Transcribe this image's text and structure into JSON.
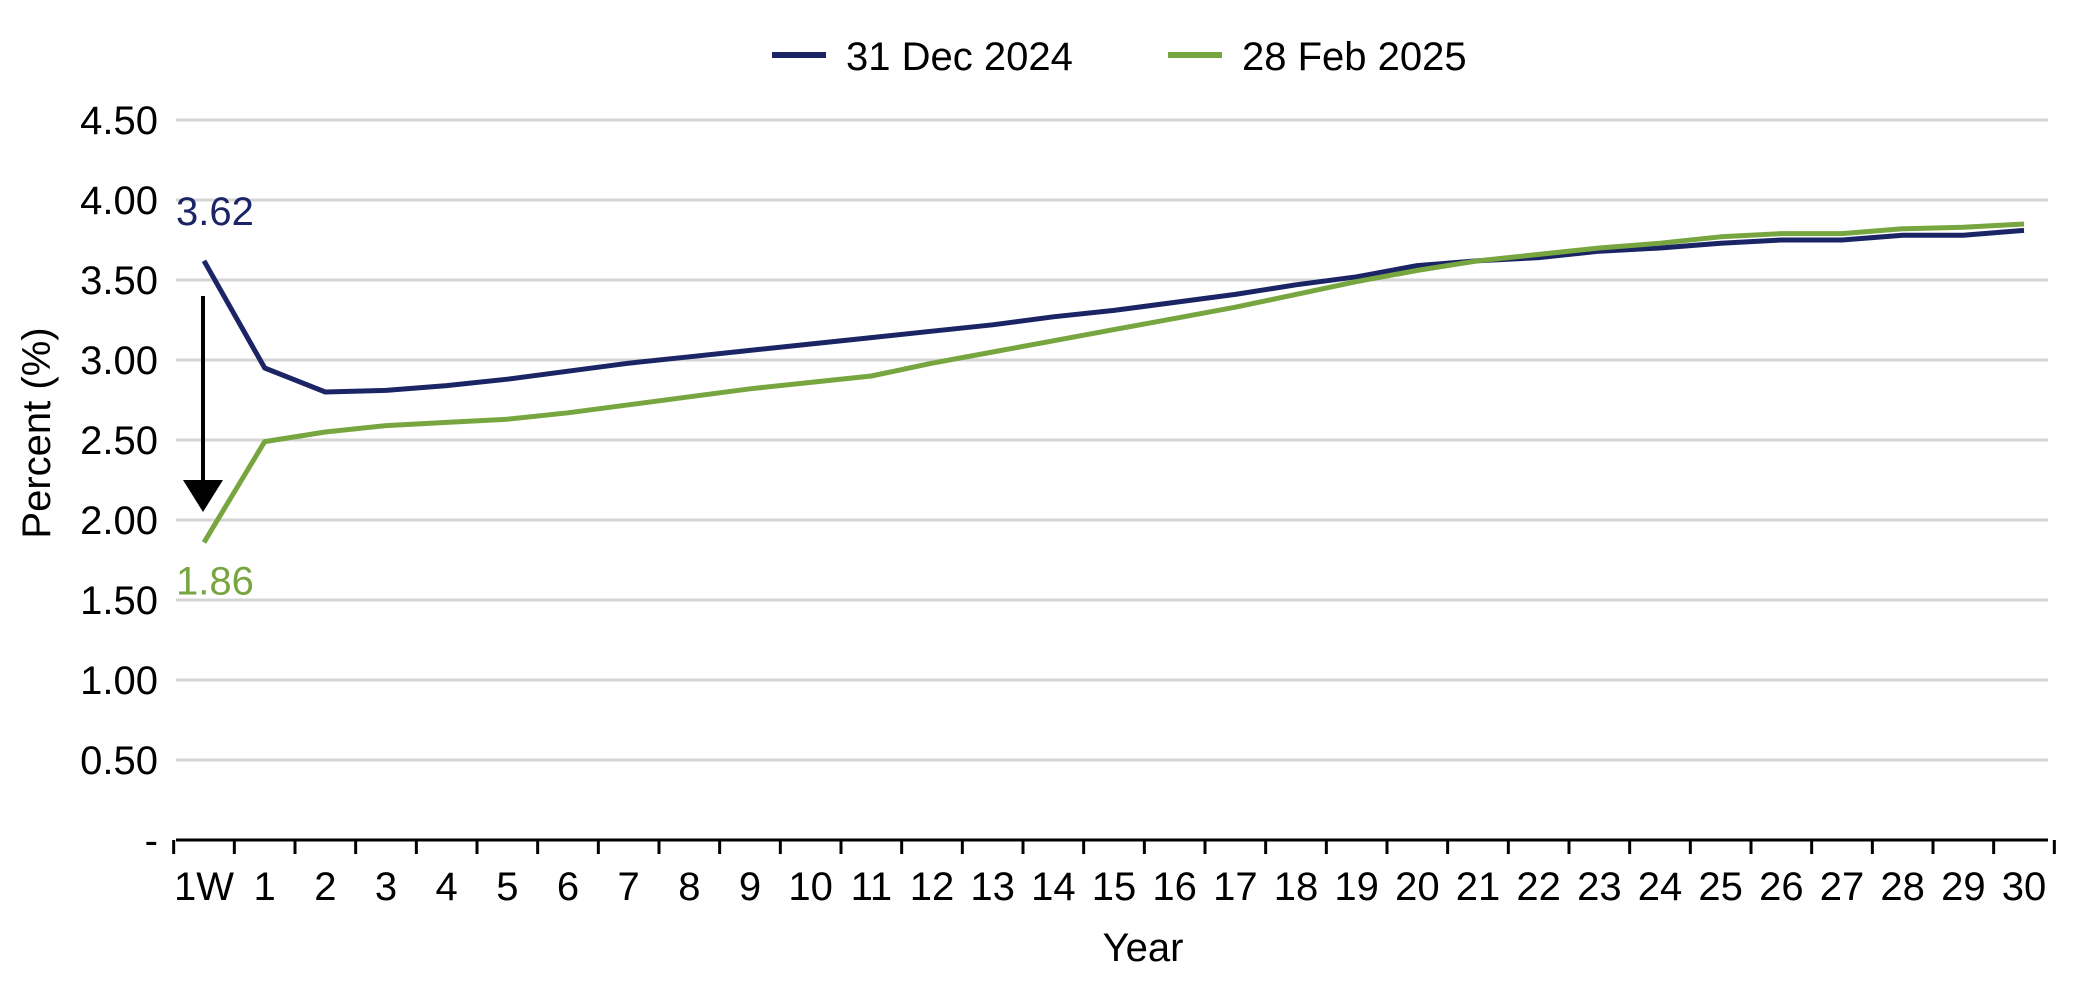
{
  "chart_data": {
    "type": "line",
    "title": "",
    "xlabel": "Year",
    "ylabel": "Percent (%)",
    "categories": [
      "1W",
      "1",
      "2",
      "3",
      "4",
      "5",
      "6",
      "7",
      "8",
      "9",
      "10",
      "11",
      "12",
      "13",
      "14",
      "15",
      "16",
      "17",
      "18",
      "19",
      "20",
      "21",
      "22",
      "23",
      "24",
      "25",
      "26",
      "27",
      "28",
      "29",
      "30"
    ],
    "ylim": [
      0,
      4.5
    ],
    "yticks": [
      {
        "value": 0,
        "label": "-"
      },
      {
        "value": 0.5,
        "label": "0.50"
      },
      {
        "value": 1.0,
        "label": "1.00"
      },
      {
        "value": 1.5,
        "label": "1.50"
      },
      {
        "value": 2.0,
        "label": "2.00"
      },
      {
        "value": 2.5,
        "label": "2.50"
      },
      {
        "value": 3.0,
        "label": "3.00"
      },
      {
        "value": 3.5,
        "label": "3.50"
      },
      {
        "value": 4.0,
        "label": "4.00"
      },
      {
        "value": 4.5,
        "label": "4.50"
      }
    ],
    "grid": true,
    "legend_position": "top-center",
    "series": [
      {
        "name": "31 Dec 2024",
        "color": "#1b2565",
        "values": [
          3.62,
          2.95,
          2.8,
          2.81,
          2.84,
          2.88,
          2.93,
          2.98,
          3.02,
          3.06,
          3.1,
          3.14,
          3.18,
          3.22,
          3.27,
          3.31,
          3.36,
          3.41,
          3.47,
          3.52,
          3.59,
          3.62,
          3.64,
          3.68,
          3.7,
          3.73,
          3.75,
          3.75,
          3.78,
          3.78,
          3.81
        ]
      },
      {
        "name": "28 Feb 2025",
        "color": "#77a640",
        "values": [
          1.86,
          2.49,
          2.55,
          2.59,
          2.61,
          2.63,
          2.67,
          2.72,
          2.77,
          2.82,
          2.86,
          2.9,
          2.98,
          3.05,
          3.12,
          3.19,
          3.26,
          3.33,
          3.41,
          3.49,
          3.56,
          3.62,
          3.66,
          3.7,
          3.73,
          3.77,
          3.79,
          3.79,
          3.82,
          3.83,
          3.85
        ]
      }
    ],
    "annotations": [
      {
        "text": "3.62",
        "color": "#1b2565"
      },
      {
        "text": "1.86",
        "color": "#77a640"
      }
    ],
    "arrow": {
      "from": 3.4,
      "to": 2.05,
      "color": "#000000"
    }
  }
}
